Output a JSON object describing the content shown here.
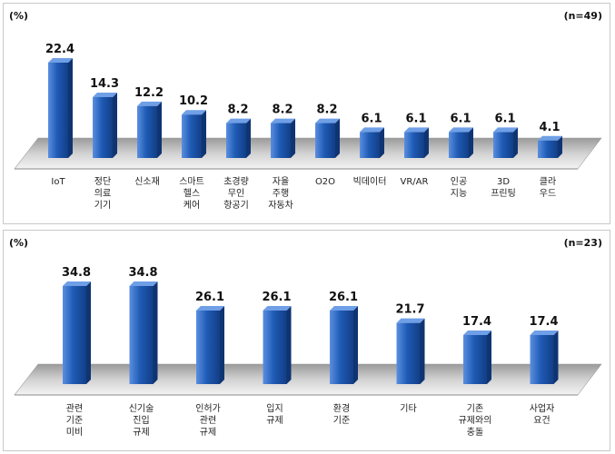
{
  "chart_data": [
    {
      "type": "bar",
      "unit_label": "(%)",
      "sample_label": "(n=49)",
      "categories": [
        [
          "IoT"
        ],
        [
          "정단",
          "의료",
          "기기"
        ],
        [
          "신소재"
        ],
        [
          "스마트",
          "헬스",
          "케어"
        ],
        [
          "초경량",
          "무인",
          "항공기"
        ],
        [
          "자율",
          "주행",
          "자동차"
        ],
        [
          "O2O"
        ],
        [
          "빅데이터"
        ],
        [
          "VR/AR"
        ],
        [
          "인공",
          "지능"
        ],
        [
          "3D",
          "프린팅"
        ],
        [
          "클라",
          "우드"
        ]
      ],
      "values": [
        22.4,
        14.3,
        12.2,
        10.2,
        8.2,
        8.2,
        8.2,
        6.1,
        6.1,
        6.1,
        6.1,
        4.1
      ],
      "value_labels": [
        "22.4",
        "14.3",
        "12.2",
        "10.2",
        "8.2",
        "8.2",
        "8.2",
        "6.1",
        "6.1",
        "6.1",
        "6.1",
        "4.1"
      ],
      "ylim": [
        0,
        22.4
      ],
      "grid": false,
      "bar_color": "#1f5bb5"
    },
    {
      "type": "bar",
      "unit_label": "(%)",
      "sample_label": "(n=23)",
      "categories": [
        [
          "관련",
          "기준",
          "미비"
        ],
        [
          "신기술",
          "진입",
          "규제"
        ],
        [
          "인허가",
          "관련",
          "규제"
        ],
        [
          "입지",
          "규제"
        ],
        [
          "환경",
          "기준"
        ],
        [
          "기타"
        ],
        [
          "기존",
          "규제와의",
          "충돌"
        ],
        [
          "사업자",
          "요건"
        ]
      ],
      "values": [
        34.8,
        34.8,
        26.1,
        26.1,
        26.1,
        21.7,
        17.4,
        17.4
      ],
      "value_labels": [
        "34.8",
        "34.8",
        "26.1",
        "26.1",
        "26.1",
        "21.7",
        "17.4",
        "17.4"
      ],
      "ylim": [
        0,
        34.8
      ],
      "grid": false,
      "bar_color": "#1f5bb5"
    }
  ]
}
